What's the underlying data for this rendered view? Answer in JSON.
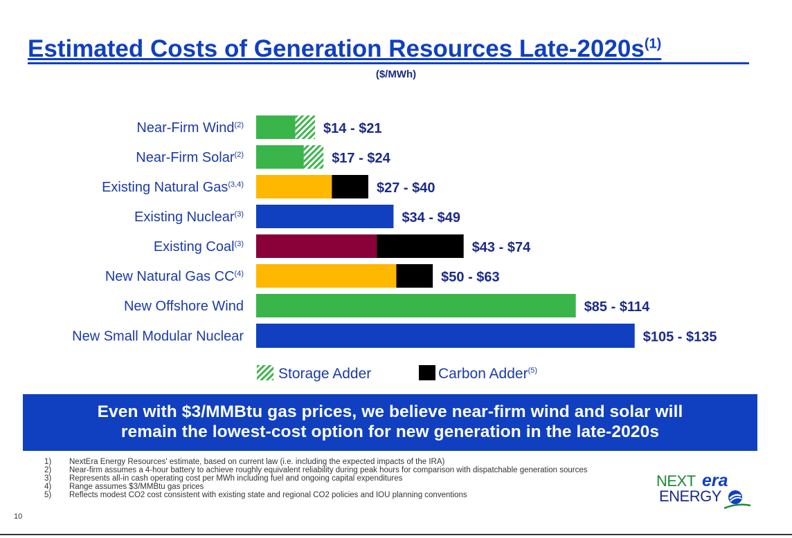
{
  "title": "Estimated Costs of Generation Resources Late-2020s",
  "title_sup": "(1)",
  "subtitle": "($/MWh)",
  "colors": {
    "green": "#3ab54a",
    "gold": "#ffb800",
    "blue": "#1040c0",
    "maroon": "#8a0038",
    "black": "#000000",
    "storage_hatch": "#3ab54a"
  },
  "chart_data": {
    "type": "bar",
    "orientation": "horizontal",
    "stacked": true,
    "unit": "$/MWh",
    "xlim": [
      0,
      140
    ],
    "grid": false,
    "legend_position": "bottom",
    "categories": [
      {
        "label": "Near-Firm Wind",
        "sup": "(2)",
        "low": 14,
        "high": 21,
        "range_label": "$14 - $21",
        "base_color": "green",
        "adder": "storage"
      },
      {
        "label": "Near-Firm Solar",
        "sup": "(2)",
        "low": 17,
        "high": 24,
        "range_label": "$17 - $24",
        "base_color": "green",
        "adder": "storage"
      },
      {
        "label": "Existing Natural Gas",
        "sup": "(3,4)",
        "low": 27,
        "high": 40,
        "range_label": "$27 - $40",
        "base_color": "gold",
        "adder": "carbon"
      },
      {
        "label": "Existing Nuclear",
        "sup": "(3)",
        "low": 34,
        "high": 49,
        "range_label": "$34 - $49",
        "base_color": "blue",
        "adder": "none"
      },
      {
        "label": "Existing Coal",
        "sup": "(3)",
        "low": 43,
        "high": 74,
        "range_label": "$43 - $74",
        "base_color": "maroon",
        "adder": "carbon"
      },
      {
        "label": "New Natural Gas CC",
        "sup": "(4)",
        "low": 50,
        "high": 63,
        "range_label": "$50 - $63",
        "base_color": "gold",
        "adder": "carbon"
      },
      {
        "label": "New Offshore Wind",
        "sup": "",
        "low": 85,
        "high": 114,
        "range_label": "$85 - $114",
        "base_color": "green",
        "adder": "none"
      },
      {
        "label": "New Small Modular Nuclear",
        "sup": "",
        "low": 105,
        "high": 135,
        "range_label": "$105 - $135",
        "base_color": "blue",
        "adder": "none"
      }
    ],
    "legend": [
      {
        "key": "storage",
        "label": "Storage Adder",
        "sup": ""
      },
      {
        "key": "carbon",
        "label": "Carbon Adder",
        "sup": "(5)"
      }
    ]
  },
  "banner": {
    "line1": "Even with $3/MMBtu gas prices, we believe near-firm wind and solar will",
    "line2": "remain the lowest-cost option for new generation in the late-2020s"
  },
  "page_number": "10",
  "footnotes": [
    {
      "num": "1)",
      "text": "NextEra Energy Resources' estimate, based on current law (i.e. including the expected impacts of the IRA)"
    },
    {
      "num": "2)",
      "text": "Near-firm assumes a 4-hour battery to achieve roughly equivalent reliability during peak hours for comparison with dispatchable generation sources"
    },
    {
      "num": "3)",
      "text": "Represents all-in cash operating cost per MWh including fuel and ongoing capital expenditures"
    },
    {
      "num": "4)",
      "text": "Range assumes $3/MMBtu gas prices"
    },
    {
      "num": "5)",
      "text": "Reflects modest CO2 cost consistent with existing state and regional CO2 policies and IOU planning conventions"
    }
  ],
  "logo": {
    "next": "NEXT",
    "era": "era",
    "energy": "ENERGY",
    "icon": "globe-swoosh-icon"
  }
}
